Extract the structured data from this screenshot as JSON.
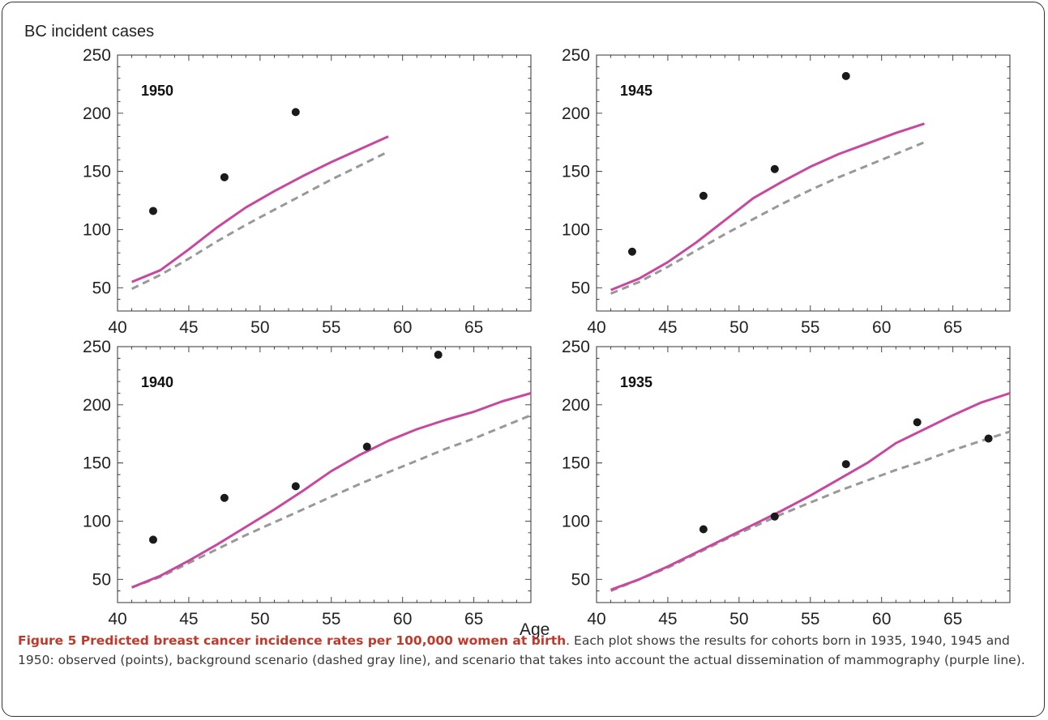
{
  "figure": {
    "ylabel": "BC incident cases",
    "xlabel": "Age",
    "caption_title": "Figure 5 Predicted breast cancer incidence rates per 100,000 women at birth",
    "caption_body": ". Each plot shows the results for cohorts born in 1935, 1940, 1945 and 1950: observed (points), background scenario (dashed gray line), and scenario that takes into account the actual dissemination of mammography (purple line)."
  },
  "colors": {
    "purple": "#c8489e",
    "gray": "#999999",
    "points": "#1a1a1a",
    "axis": "#333333"
  },
  "chart_data": [
    {
      "type": "line",
      "panel_label": "1950",
      "xlim": [
        40,
        69
      ],
      "ylim": [
        30,
        250
      ],
      "xticks": [
        40,
        45,
        50,
        55,
        60,
        65
      ],
      "yticks": [
        50,
        100,
        150,
        200,
        250
      ],
      "series": [
        {
          "style": "solid-purple",
          "x": [
            41,
            43,
            45,
            47,
            49,
            51,
            53,
            55,
            57,
            59
          ],
          "y": [
            55,
            65,
            83,
            102,
            119,
            133,
            146,
            158,
            169,
            180
          ]
        },
        {
          "style": "dashed-gray",
          "x": [
            41,
            43,
            45,
            47,
            49,
            51,
            53,
            55,
            57,
            59
          ],
          "y": [
            49,
            61,
            75,
            90,
            104,
            117,
            130,
            143,
            155,
            167
          ]
        }
      ],
      "points": {
        "x": [
          42.5,
          47.5,
          52.5
        ],
        "y": [
          116,
          145,
          201
        ]
      }
    },
    {
      "type": "line",
      "panel_label": "1945",
      "xlim": [
        40,
        69
      ],
      "ylim": [
        30,
        250
      ],
      "xticks": [
        40,
        45,
        50,
        55,
        60,
        65
      ],
      "yticks": [
        50,
        100,
        150,
        200,
        250
      ],
      "series": [
        {
          "style": "solid-purple",
          "x": [
            41,
            43,
            45,
            47,
            49,
            51,
            53,
            55,
            57,
            59,
            61,
            63
          ],
          "y": [
            48,
            58,
            72,
            89,
            108,
            127,
            141,
            154,
            165,
            174,
            183,
            191
          ]
        },
        {
          "style": "dashed-gray",
          "x": [
            41,
            43,
            45,
            47,
            49,
            51,
            53,
            55,
            57,
            59,
            61,
            63
          ],
          "y": [
            45,
            55,
            68,
            82,
            96,
            109,
            122,
            134,
            145,
            155,
            165,
            175
          ]
        }
      ],
      "points": {
        "x": [
          42.5,
          47.5,
          52.5,
          57.5
        ],
        "y": [
          81,
          129,
          152,
          232
        ]
      }
    },
    {
      "type": "line",
      "panel_label": "1940",
      "xlim": [
        40,
        69
      ],
      "ylim": [
        30,
        250
      ],
      "xticks": [
        40,
        45,
        50,
        55,
        60,
        65
      ],
      "yticks": [
        50,
        100,
        150,
        200,
        250
      ],
      "series": [
        {
          "style": "solid-purple",
          "x": [
            41,
            43,
            45,
            47,
            49,
            51,
            53,
            55,
            57,
            59,
            61,
            63,
            65,
            67,
            69
          ],
          "y": [
            43,
            53,
            66,
            80,
            95,
            110,
            126,
            143,
            157,
            169,
            179,
            187,
            194,
            203,
            210
          ]
        },
        {
          "style": "dashed-gray",
          "x": [
            41,
            43,
            45,
            47,
            49,
            51,
            53,
            55,
            57,
            59,
            61,
            63,
            65,
            67,
            69
          ],
          "y": [
            43,
            52,
            64,
            76,
            88,
            99,
            110,
            121,
            132,
            142,
            152,
            162,
            171,
            181,
            191
          ]
        }
      ],
      "points": {
        "x": [
          42.5,
          47.5,
          52.5,
          57.5,
          62.5
        ],
        "y": [
          84,
          120,
          130,
          164,
          243
        ]
      }
    },
    {
      "type": "line",
      "panel_label": "1935",
      "xlim": [
        40,
        69
      ],
      "ylim": [
        30,
        250
      ],
      "xticks": [
        40,
        45,
        50,
        55,
        60,
        65
      ],
      "yticks": [
        50,
        100,
        150,
        200,
        250
      ],
      "series": [
        {
          "style": "solid-purple",
          "x": [
            41,
            43,
            45,
            47,
            49,
            51,
            53,
            55,
            57,
            59,
            61,
            63,
            65,
            67,
            69
          ],
          "y": [
            41,
            50,
            61,
            73,
            85,
            97,
            109,
            122,
            136,
            150,
            167,
            179,
            191,
            202,
            210
          ]
        },
        {
          "style": "dashed-gray",
          "x": [
            41,
            43,
            45,
            47,
            49,
            51,
            53,
            55,
            57,
            59,
            61,
            63,
            65,
            67,
            69
          ],
          "y": [
            40,
            50,
            60,
            72,
            84,
            95,
            106,
            116,
            126,
            135,
            144,
            152,
            161,
            169,
            177
          ]
        }
      ],
      "points": {
        "x": [
          47.5,
          52.5,
          57.5,
          62.5,
          67.5
        ],
        "y": [
          93,
          104,
          149,
          185,
          171
        ]
      }
    }
  ]
}
